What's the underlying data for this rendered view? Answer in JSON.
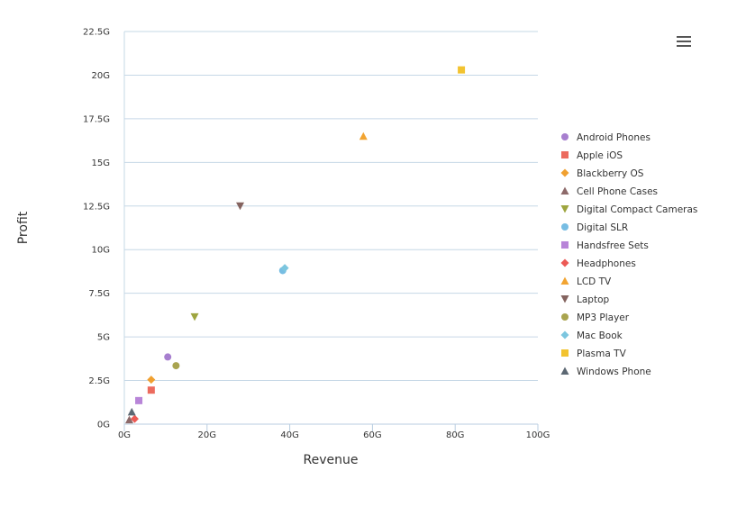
{
  "chart_data": {
    "type": "scatter",
    "title": "",
    "xlabel": "Revenue",
    "ylabel": "Profit",
    "xlim": [
      0,
      100
    ],
    "ylim": [
      0,
      22.5
    ],
    "unit_suffix": "G",
    "x_ticks": [
      "0G",
      "20G",
      "40G",
      "60G",
      "80G",
      "100G"
    ],
    "y_ticks": [
      "0G",
      "2.5G",
      "5G",
      "7.5G",
      "10G",
      "12.5G",
      "15G",
      "17.5G",
      "20G",
      "22.5G"
    ],
    "grid": true,
    "legend_position": "right",
    "series": [
      {
        "name": "Android Phones",
        "color": "#a77fcf",
        "marker": "circle",
        "points": [
          [
            10.5,
            3.85
          ]
        ]
      },
      {
        "name": "Apple iOS",
        "color": "#ec6b5e",
        "marker": "square",
        "points": [
          [
            6.5,
            1.95
          ]
        ]
      },
      {
        "name": "Blackberry OS",
        "color": "#f0a030",
        "marker": "diamond",
        "points": [
          [
            6.5,
            2.55
          ]
        ]
      },
      {
        "name": "Cell Phone Cases",
        "color": "#8d6a6a",
        "marker": "triangle",
        "points": [
          [
            1.2,
            0.25
          ]
        ]
      },
      {
        "name": "Digital Compact Cameras",
        "color": "#9ea53f",
        "marker": "triangle-down",
        "points": [
          [
            17,
            6.15
          ]
        ]
      },
      {
        "name": "Digital SLR",
        "color": "#77bde3",
        "marker": "circle",
        "points": [
          [
            38.3,
            8.8
          ]
        ]
      },
      {
        "name": "Handsfree Sets",
        "color": "#b885d8",
        "marker": "square",
        "points": [
          [
            3.5,
            1.35
          ]
        ]
      },
      {
        "name": "Headphones",
        "color": "#ec5a55",
        "marker": "diamond",
        "points": [
          [
            2.5,
            0.3
          ]
        ]
      },
      {
        "name": "LCD TV",
        "color": "#f2a431",
        "marker": "triangle",
        "points": [
          [
            57.8,
            16.5
          ]
        ]
      },
      {
        "name": "Laptop",
        "color": "#84635f",
        "marker": "triangle-down",
        "points": [
          [
            28,
            12.5
          ]
        ]
      },
      {
        "name": "MP3 Player",
        "color": "#a9a44f",
        "marker": "circle",
        "points": [
          [
            12.5,
            3.35
          ]
        ]
      },
      {
        "name": "Mac Book",
        "color": "#7cc6df",
        "marker": "diamond",
        "points": [
          [
            38.8,
            8.95
          ]
        ]
      },
      {
        "name": "Plasma TV",
        "color": "#f2c330",
        "marker": "square",
        "points": [
          [
            81.5,
            20.3
          ]
        ]
      },
      {
        "name": "Windows Phone",
        "color": "#5c6873",
        "marker": "triangle",
        "points": [
          [
            1.8,
            0.7
          ]
        ]
      }
    ]
  },
  "menu": {
    "icon": "hamburger-menu-icon"
  }
}
